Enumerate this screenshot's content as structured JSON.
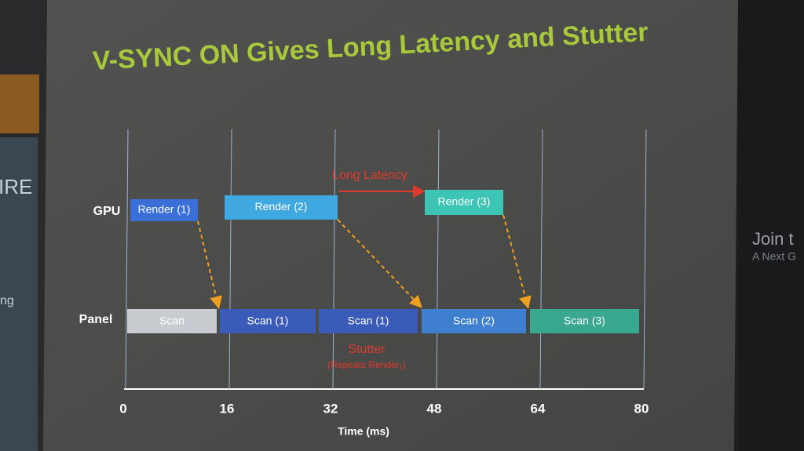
{
  "title": "V-SYNC ON Gives Long Latency and Stutter",
  "rows": [
    "GPU",
    "Panel"
  ],
  "gpu_blocks": [
    "Render (1)",
    "Render (2)",
    "Render (3)"
  ],
  "panel_blocks": [
    "Scan",
    "Scan (1)",
    "Scan (1)",
    "Scan (2)",
    "Scan (3)"
  ],
  "annotations": {
    "latency": "Long Latency",
    "stutter": "Stutter",
    "stutter_note": "(Repeats Render₁)"
  },
  "axis": {
    "ticks": [
      0,
      16,
      32,
      48,
      64,
      80
    ],
    "label": "Time (ms)"
  },
  "background": {
    "left": [
      "IRE",
      "ng"
    ],
    "right": [
      "Join t",
      "A Next G"
    ]
  }
}
